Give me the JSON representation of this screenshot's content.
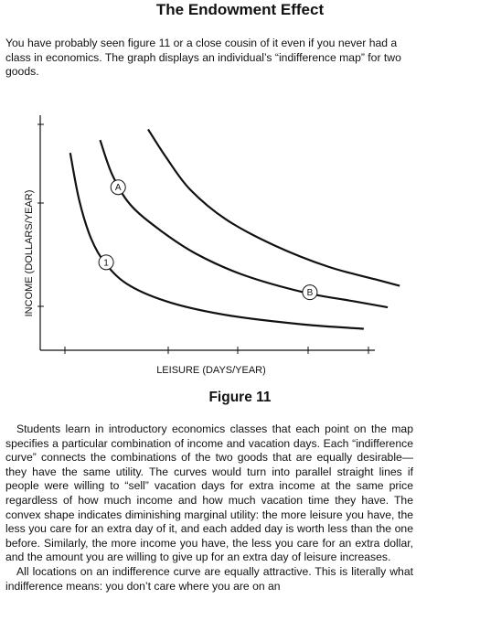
{
  "title": "The Endowment Effect",
  "intro": "You have probably seen figure 11 or a close cousin of it even if you never had a class in economics. The graph displays an individual’s “indifference map” for two goods.",
  "chart_data": {
    "type": "line",
    "title": "",
    "xlabel": "LEISURE (DAYS/YEAR)",
    "ylabel": "INCOME (DOLLARS/YEAR)",
    "series": [
      {
        "name": "1",
        "points": [
          [
            0.5,
            9.2
          ],
          [
            0.65,
            7.0
          ],
          [
            0.85,
            5.2
          ],
          [
            1.1,
            4.0
          ],
          [
            1.5,
            3.0
          ],
          [
            2.2,
            2.2
          ],
          [
            3.2,
            1.6
          ],
          [
            4.4,
            1.2
          ],
          [
            5.4,
            1.0
          ]
        ]
      },
      {
        "name": "",
        "points": [
          [
            1.0,
            9.8
          ],
          [
            1.2,
            8.2
          ],
          [
            1.5,
            6.8
          ],
          [
            2.0,
            5.6
          ],
          [
            2.6,
            4.5
          ],
          [
            3.4,
            3.5
          ],
          [
            4.4,
            2.7
          ],
          [
            5.2,
            2.3
          ],
          [
            5.8,
            2.0
          ]
        ]
      },
      {
        "name": "",
        "points": [
          [
            1.8,
            10.3
          ],
          [
            2.1,
            9.0
          ],
          [
            2.5,
            7.5
          ],
          [
            3.1,
            6.1
          ],
          [
            3.9,
            4.9
          ],
          [
            4.8,
            3.9
          ],
          [
            5.6,
            3.3
          ],
          [
            6.0,
            3.0
          ]
        ]
      }
    ],
    "markers": [
      {
        "label": "A",
        "x": 1.3,
        "y": 7.6
      },
      {
        "label": "B",
        "x": 4.5,
        "y": 2.7
      },
      {
        "label": "1",
        "x": 1.1,
        "y": 4.1
      }
    ],
    "xlim": [
      0,
      6.5
    ],
    "ylim": [
      0,
      11
    ]
  },
  "caption": "Figure 11",
  "paragraphs": [
    "Students learn in introductory economics classes that each point on the map specifies a particular combination of income and vacation days. Each “indifference curve” connects the combinations of the two goods that are equally desirable—they have the same utility. The curves would turn into parallel straight lines if people were willing to “sell” vacation days for extra income at the same price regardless of how much income and how much vacation time they have. The convex shape indicates diminishing marginal utility: the more leisure you have, the less you care for an extra day of it, and each added day is worth less than the one before. Similarly, the more income you have, the less you care for an extra dollar, and the amount you are willing to give up for an extra day of leisure increases.",
    "All locations on an indifference curve are equally attractive. This is literally what indifference means: you don’t care where you are on an"
  ]
}
